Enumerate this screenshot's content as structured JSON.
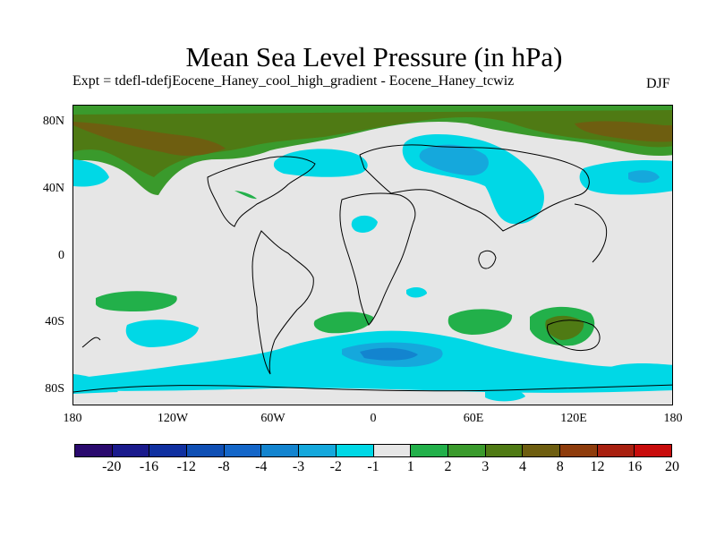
{
  "title": "Mean Sea Level Pressure (in hPa)",
  "subtitle": "Expt = tdefl-tdefjEocene_Haney_cool_high_gradient - Eocene_Haney_tcwiz",
  "season": "DJF",
  "axes": {
    "y_ticks": [
      "80N",
      "40N",
      "0",
      "40S",
      "80S"
    ],
    "x_ticks": [
      "180",
      "120W",
      "60W",
      "0",
      "60E",
      "120E",
      "180"
    ]
  },
  "colorbar": {
    "labels": [
      "-20",
      "-16",
      "-12",
      "-8",
      "-4",
      "-3",
      "-2",
      "-1",
      "1",
      "2",
      "3",
      "4",
      "8",
      "12",
      "16",
      "20"
    ],
    "colors": [
      "#2a0a6e",
      "#1a1a8c",
      "#1030a0",
      "#0f4fb4",
      "#1466c8",
      "#1384cf",
      "#15a8dc",
      "#00d8e6",
      "#e6e6e6",
      "#22b04a",
      "#3a9a2c",
      "#4f7a14",
      "#6e5e10",
      "#8e3c0c",
      "#a82010",
      "#c80c0c"
    ]
  },
  "map_colors": {
    "background": "#e6e6e6",
    "cyan": "#00d8e6",
    "mid_blue": "#15a8dc",
    "blue": "#1384cf",
    "green": "#22b04a",
    "dark_green": "#4f7a14",
    "brown": "#6e5e10"
  }
}
